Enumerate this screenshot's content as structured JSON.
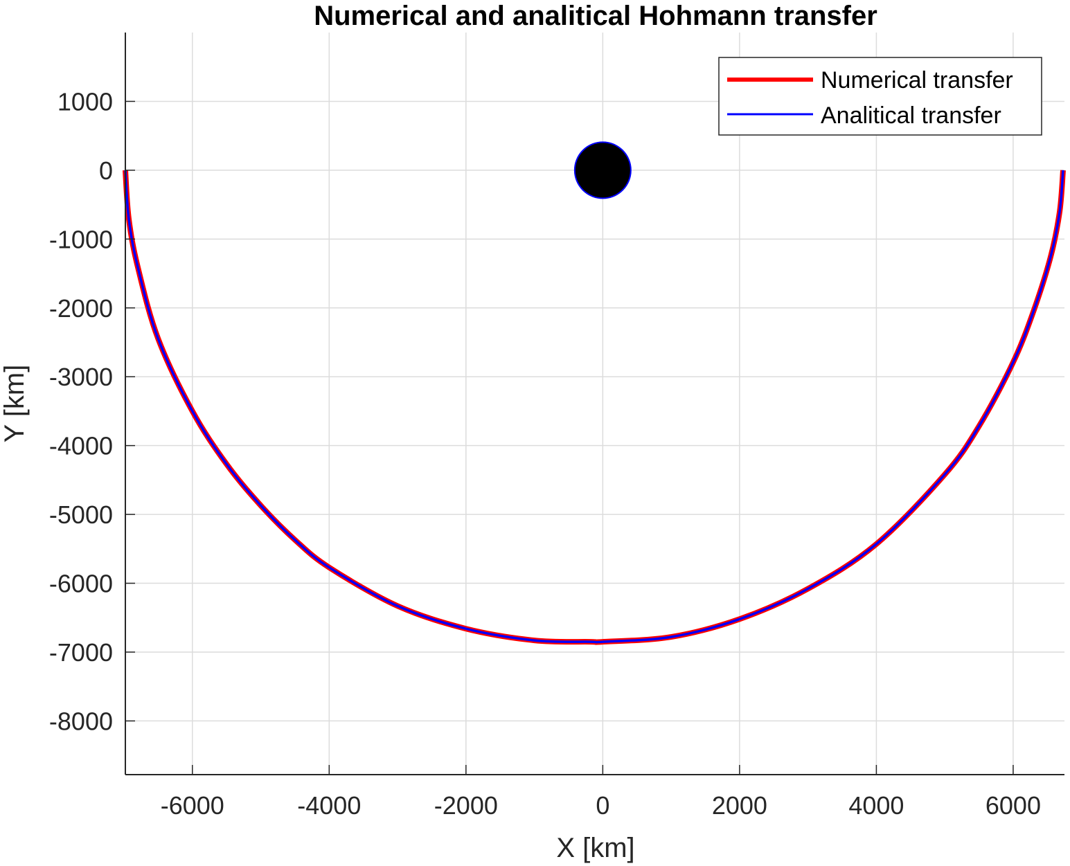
{
  "chart_data": {
    "type": "line",
    "title": "Numerical and analitical Hohmann transfer",
    "xlabel": "X [km]",
    "ylabel": "Y [km]",
    "xlim": [
      -6980,
      6750
    ],
    "ylim": [
      -8780,
      2000
    ],
    "xticks": [
      -6000,
      -4000,
      -2000,
      0,
      2000,
      4000,
      6000
    ],
    "yticks": [
      1000,
      0,
      -1000,
      -2000,
      -3000,
      -4000,
      -5000,
      -6000,
      -7000,
      -8000
    ],
    "grid": true,
    "legend_position": "top-right",
    "central_body": {
      "center": [
        0,
        0
      ],
      "radius": 410,
      "fill": "#000000",
      "edge": "#0000ff"
    },
    "series": [
      {
        "name": "Numerical transfer",
        "color": "#ff0000",
        "description_path": "half ellipse below x-axis",
        "x": [
          -6980,
          -6930,
          -6800,
          -6500,
          -6000,
          -5500,
          -5000,
          -4500,
          -4000,
          -3000,
          -2000,
          -1000,
          -180,
          0,
          1000,
          2000,
          3000,
          4000,
          5000,
          5500,
          6000,
          6300,
          6550,
          6680,
          6730
        ],
        "y": [
          0,
          -700,
          -1400,
          -2450,
          -3500,
          -4270,
          -4870,
          -5370,
          -5770,
          -6330,
          -6660,
          -6830,
          -6850,
          -6850,
          -6780,
          -6520,
          -6080,
          -5430,
          -4420,
          -3720,
          -2790,
          -2040,
          -1250,
          -600,
          0
        ]
      },
      {
        "name": "Analitical transfer",
        "color": "#0000ff",
        "x": [
          -6980,
          -6930,
          -6800,
          -6500,
          -6000,
          -5500,
          -5000,
          -4500,
          -4000,
          -3000,
          -2000,
          -1000,
          -180,
          0,
          1000,
          2000,
          3000,
          4000,
          5000,
          5500,
          6000,
          6300,
          6550,
          6680,
          6730
        ],
        "y": [
          0,
          -700,
          -1400,
          -2450,
          -3500,
          -4270,
          -4870,
          -5370,
          -5770,
          -6330,
          -6660,
          -6830,
          -6850,
          -6850,
          -6780,
          -6520,
          -6080,
          -5430,
          -4420,
          -3720,
          -2790,
          -2040,
          -1250,
          -600,
          0
        ]
      }
    ]
  }
}
